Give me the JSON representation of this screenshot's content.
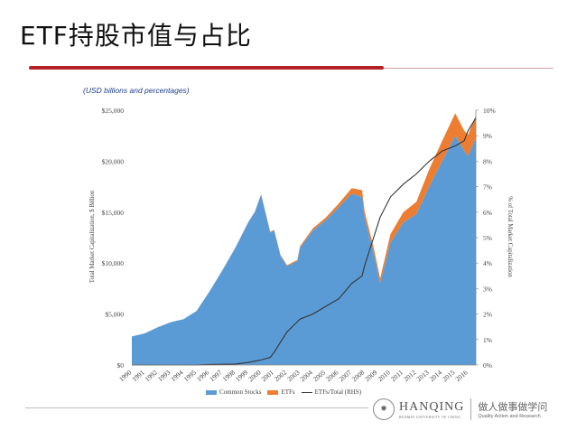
{
  "slide": {
    "title": "ETF持股市值与占比",
    "units_note": "(USD billions and percentages)"
  },
  "footer": {
    "brand_name": "HANQING",
    "brand_sub": "RENMIN UNIVERSITY OF CHINA",
    "slogan_cn": "做人做事做学问",
    "slogan_en": "Quality Action and Research"
  },
  "colors": {
    "stocks": "#5b9bd5",
    "etfs": "#ed7d31",
    "ratio_line": "#333333",
    "accent": "#b3202a"
  },
  "chart_data": {
    "type": "area",
    "title": "",
    "ylabel": "Total Market Capitalization, $ Billion",
    "y2label": "% of Total Market Capitalization",
    "ylim": [
      0,
      25000
    ],
    "y2lim": [
      0,
      10
    ],
    "yticks": [
      "$0",
      "$5,000",
      "$10,000",
      "$15,000",
      "$20,000",
      "$25,000"
    ],
    "y2ticks": [
      "0%",
      "1%",
      "2%",
      "3%",
      "4%",
      "5%",
      "6%",
      "7%",
      "8%",
      "9%",
      "10%"
    ],
    "xticks": [
      "1990",
      "1991",
      "1992",
      "1993",
      "1994",
      "1995",
      "1996",
      "1997",
      "1998",
      "1999",
      "2000",
      "2001",
      "2002",
      "2003",
      "2004",
      "2005",
      "2006",
      "2007",
      "2008",
      "2009",
      "2010",
      "2011",
      "2012",
      "2013",
      "2014",
      "2015",
      "2016"
    ],
    "x": [
      1990,
      1991,
      1992,
      1993,
      1994,
      1995,
      1996,
      1997,
      1998,
      1999,
      1999.5,
      2000,
      2000.7,
      2001,
      2001.5,
      2002,
      2002.8,
      2003,
      2004,
      2005,
      2006,
      2007,
      2007.8,
      2008,
      2008.7,
      2009.2,
      2010,
      2011,
      2012,
      2013,
      2014,
      2015,
      2015.7,
      2016,
      2016.6
    ],
    "series": [
      {
        "name": "Common Stocks",
        "axis": "left",
        "values": [
          2800,
          3100,
          3700,
          4200,
          4500,
          5300,
          7200,
          9300,
          11500,
          14000,
          15000,
          16700,
          13000,
          13200,
          10700,
          9700,
          10200,
          11500,
          13200,
          14200,
          15500,
          16800,
          16500,
          14500,
          11000,
          8000,
          12000,
          14000,
          14800,
          17500,
          20000,
          22500,
          21000,
          20500,
          22300
        ]
      },
      {
        "name": "ETFs",
        "axis": "left",
        "values": [
          0,
          0,
          0,
          0,
          0,
          0,
          0,
          0,
          10,
          20,
          30,
          60,
          70,
          80,
          90,
          100,
          110,
          150,
          200,
          270,
          350,
          550,
          650,
          600,
          550,
          500,
          850,
          1000,
          1200,
          1700,
          2000,
          2200,
          2000,
          2100,
          2200
        ]
      },
      {
        "name": "ETFs/Total (RHS)",
        "axis": "right",
        "values": [
          0,
          0,
          0,
          0,
          0,
          0,
          0.02,
          0.03,
          0.04,
          0.1,
          0.15,
          0.2,
          0.3,
          0.5,
          0.9,
          1.3,
          1.7,
          1.8,
          2.0,
          2.3,
          2.6,
          3.2,
          3.5,
          3.9,
          5.0,
          5.8,
          6.6,
          7.1,
          7.5,
          8.0,
          8.4,
          8.6,
          8.8,
          9.2,
          9.7
        ]
      }
    ],
    "legend": [
      "Common Stocks",
      "ETFs",
      "ETFs/Total (RHS)"
    ],
    "legend_position": "bottom-center",
    "grid": false
  }
}
